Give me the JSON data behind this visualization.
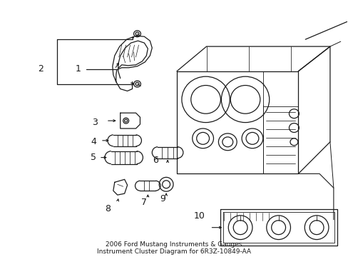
{
  "bg_color": "#ffffff",
  "line_color": "#1a1a1a",
  "figsize": [
    4.89,
    3.6
  ],
  "dpi": 100,
  "label_fontsize": 9,
  "title_fontsize": 6.5,
  "title": "2006 Ford Mustang Instruments & Gauges\nInstrument Cluster Diagram for 6R3Z-10849-AA",
  "labels": [
    [
      "1",
      108,
      97
    ],
    [
      "2",
      55,
      97
    ],
    [
      "3",
      132,
      172
    ],
    [
      "4",
      130,
      200
    ],
    [
      "5",
      130,
      222
    ],
    [
      "6",
      218,
      226
    ],
    [
      "7",
      202,
      285
    ],
    [
      "8",
      150,
      295
    ],
    [
      "9",
      228,
      280
    ],
    [
      "10",
      280,
      305
    ]
  ]
}
